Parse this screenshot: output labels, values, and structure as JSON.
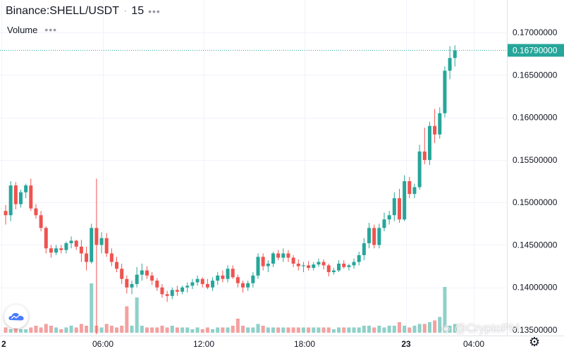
{
  "header": {
    "symbol": "Binance:SHELL/USDT",
    "interval": "15",
    "volume_label": "Volume"
  },
  "last_price_label": "0.16790000",
  "watermark": "@CryptoPM",
  "colors": {
    "up": "#26a69a",
    "down": "#ef5350",
    "up_vol": "#8ed1c9",
    "down_vol": "#f3a1a0",
    "grid": "#f0f3fa"
  },
  "chart_data": {
    "type": "candlestick",
    "ylim": [
      0.135,
      0.172
    ],
    "y_ticks": [
      "0.13500000",
      "0.14000000",
      "0.14500000",
      "0.15000000",
      "0.15500000",
      "0.16000000",
      "0.16500000",
      "0.17000000"
    ],
    "x_ticks": [
      "2",
      "06:00",
      "12:00",
      "18:00",
      "23",
      "04:00"
    ],
    "last_price": 0.1679,
    "candles": [
      [
        0.149,
        0.1497,
        0.1474,
        0.1485,
        3
      ],
      [
        0.1485,
        0.1525,
        0.1478,
        0.152,
        2
      ],
      [
        0.152,
        0.1524,
        0.1492,
        0.1498,
        3
      ],
      [
        0.1498,
        0.1515,
        0.1494,
        0.1512,
        2
      ],
      [
        0.1512,
        0.1522,
        0.1505,
        0.152,
        2
      ],
      [
        0.152,
        0.1528,
        0.149,
        0.1493,
        3
      ],
      [
        0.1493,
        0.1498,
        0.1481,
        0.1485,
        4
      ],
      [
        0.1485,
        0.149,
        0.1466,
        0.147,
        3
      ],
      [
        0.147,
        0.1472,
        0.144,
        0.1446,
        5
      ],
      [
        0.1446,
        0.145,
        0.1435,
        0.1441,
        4
      ],
      [
        0.1441,
        0.145,
        0.1438,
        0.1446,
        3
      ],
      [
        0.1446,
        0.145,
        0.144,
        0.1444,
        2
      ],
      [
        0.1444,
        0.1454,
        0.144,
        0.1452,
        3
      ],
      [
        0.1452,
        0.146,
        0.1446,
        0.1455,
        4
      ],
      [
        0.1455,
        0.1456,
        0.1444,
        0.1448,
        3
      ],
      [
        0.1448,
        0.1456,
        0.143,
        0.144,
        5
      ],
      [
        0.144,
        0.1448,
        0.142,
        0.143,
        4
      ],
      [
        0.143,
        0.1475,
        0.1428,
        0.147,
        28
      ],
      [
        0.147,
        0.1528,
        0.1345,
        0.145,
        4
      ],
      [
        0.145,
        0.1465,
        0.144,
        0.1458,
        3
      ],
      [
        0.1458,
        0.1464,
        0.1436,
        0.144,
        5
      ],
      [
        0.144,
        0.1446,
        0.1425,
        0.143,
        4
      ],
      [
        0.143,
        0.1436,
        0.1418,
        0.1422,
        3
      ],
      [
        0.1422,
        0.1428,
        0.1404,
        0.141,
        4
      ],
      [
        0.141,
        0.1414,
        0.1393,
        0.14,
        15
      ],
      [
        0.14,
        0.1408,
        0.1392,
        0.1404,
        4
      ],
      [
        0.1404,
        0.1424,
        0.14,
        0.1415,
        20
      ],
      [
        0.1415,
        0.1428,
        0.1408,
        0.142,
        4
      ],
      [
        0.142,
        0.1425,
        0.141,
        0.1414,
        3
      ],
      [
        0.1414,
        0.1418,
        0.1403,
        0.1408,
        3
      ],
      [
        0.1408,
        0.1411,
        0.1396,
        0.14,
        3
      ],
      [
        0.14,
        0.1404,
        0.1388,
        0.1392,
        4
      ],
      [
        0.1392,
        0.1396,
        0.1383,
        0.139,
        3
      ],
      [
        0.139,
        0.14,
        0.1386,
        0.1397,
        4
      ],
      [
        0.1397,
        0.1402,
        0.139,
        0.1395,
        3
      ],
      [
        0.1395,
        0.1402,
        0.1392,
        0.14,
        3
      ],
      [
        0.14,
        0.1406,
        0.1394,
        0.1402,
        3
      ],
      [
        0.1402,
        0.141,
        0.1398,
        0.1406,
        2
      ],
      [
        0.1406,
        0.1414,
        0.1402,
        0.141,
        3
      ],
      [
        0.141,
        0.1412,
        0.14,
        0.1404,
        2
      ],
      [
        0.1404,
        0.141,
        0.1398,
        0.14,
        3
      ],
      [
        0.14,
        0.1412,
        0.1396,
        0.1408,
        2
      ],
      [
        0.1408,
        0.1418,
        0.1403,
        0.1414,
        3
      ],
      [
        0.1414,
        0.142,
        0.1406,
        0.141,
        3
      ],
      [
        0.141,
        0.1426,
        0.1406,
        0.1422,
        3
      ],
      [
        0.1422,
        0.1426,
        0.141,
        0.1412,
        4
      ],
      [
        0.1412,
        0.1415,
        0.14,
        0.1405,
        8
      ],
      [
        0.1405,
        0.1408,
        0.1394,
        0.14,
        4
      ],
      [
        0.14,
        0.1408,
        0.1396,
        0.1405,
        3
      ],
      [
        0.1405,
        0.1418,
        0.14,
        0.1414,
        3
      ],
      [
        0.1414,
        0.144,
        0.141,
        0.1436,
        5
      ],
      [
        0.1436,
        0.144,
        0.142,
        0.1425,
        4
      ],
      [
        0.1425,
        0.1432,
        0.1418,
        0.1428,
        3
      ],
      [
        0.1428,
        0.1442,
        0.1424,
        0.144,
        3
      ],
      [
        0.144,
        0.1444,
        0.1432,
        0.1435,
        3
      ],
      [
        0.1435,
        0.1446,
        0.143,
        0.144,
        3
      ],
      [
        0.144,
        0.1444,
        0.143,
        0.1435,
        3
      ],
      [
        0.1435,
        0.1438,
        0.1424,
        0.1428,
        3
      ],
      [
        0.1428,
        0.1433,
        0.142,
        0.1425,
        3
      ],
      [
        0.1425,
        0.143,
        0.1418,
        0.1426,
        3
      ],
      [
        0.1426,
        0.1431,
        0.142,
        0.1423,
        3
      ],
      [
        0.1423,
        0.143,
        0.142,
        0.1427,
        3
      ],
      [
        0.1427,
        0.1434,
        0.1424,
        0.143,
        3
      ],
      [
        0.143,
        0.1433,
        0.1421,
        0.1426,
        3
      ],
      [
        0.1426,
        0.1428,
        0.1413,
        0.1418,
        3
      ],
      [
        0.1418,
        0.1423,
        0.1415,
        0.142,
        2
      ],
      [
        0.142,
        0.1432,
        0.1418,
        0.1428,
        3
      ],
      [
        0.1428,
        0.1432,
        0.1422,
        0.1424,
        3
      ],
      [
        0.1424,
        0.1428,
        0.142,
        0.1426,
        3
      ],
      [
        0.1426,
        0.1434,
        0.1422,
        0.143,
        3
      ],
      [
        0.143,
        0.1442,
        0.1426,
        0.1438,
        3
      ],
      [
        0.1438,
        0.1458,
        0.1432,
        0.1452,
        4
      ],
      [
        0.1452,
        0.1476,
        0.1446,
        0.147,
        4
      ],
      [
        0.147,
        0.1474,
        0.1446,
        0.145,
        3
      ],
      [
        0.145,
        0.1475,
        0.1446,
        0.147,
        4
      ],
      [
        0.147,
        0.1488,
        0.1466,
        0.148,
        3
      ],
      [
        0.148,
        0.149,
        0.1474,
        0.1485,
        4
      ],
      [
        0.1485,
        0.1512,
        0.1478,
        0.1505,
        4
      ],
      [
        0.1505,
        0.1516,
        0.1476,
        0.148,
        6
      ],
      [
        0.148,
        0.1532,
        0.1478,
        0.1525,
        4
      ],
      [
        0.1525,
        0.153,
        0.1505,
        0.151,
        3
      ],
      [
        0.151,
        0.1522,
        0.1505,
        0.1518,
        4
      ],
      [
        0.1518,
        0.1568,
        0.1515,
        0.156,
        5
      ],
      [
        0.156,
        0.1588,
        0.1545,
        0.155,
        5
      ],
      [
        0.155,
        0.1595,
        0.1544,
        0.159,
        6
      ],
      [
        0.159,
        0.161,
        0.157,
        0.158,
        7
      ],
      [
        0.158,
        0.1612,
        0.1575,
        0.1605,
        9
      ],
      [
        0.1605,
        0.166,
        0.16,
        0.1655,
        26
      ],
      [
        0.1655,
        0.1684,
        0.1645,
        0.167,
        4
      ],
      [
        0.167,
        0.1685,
        0.166,
        0.1679,
        5
      ]
    ]
  }
}
